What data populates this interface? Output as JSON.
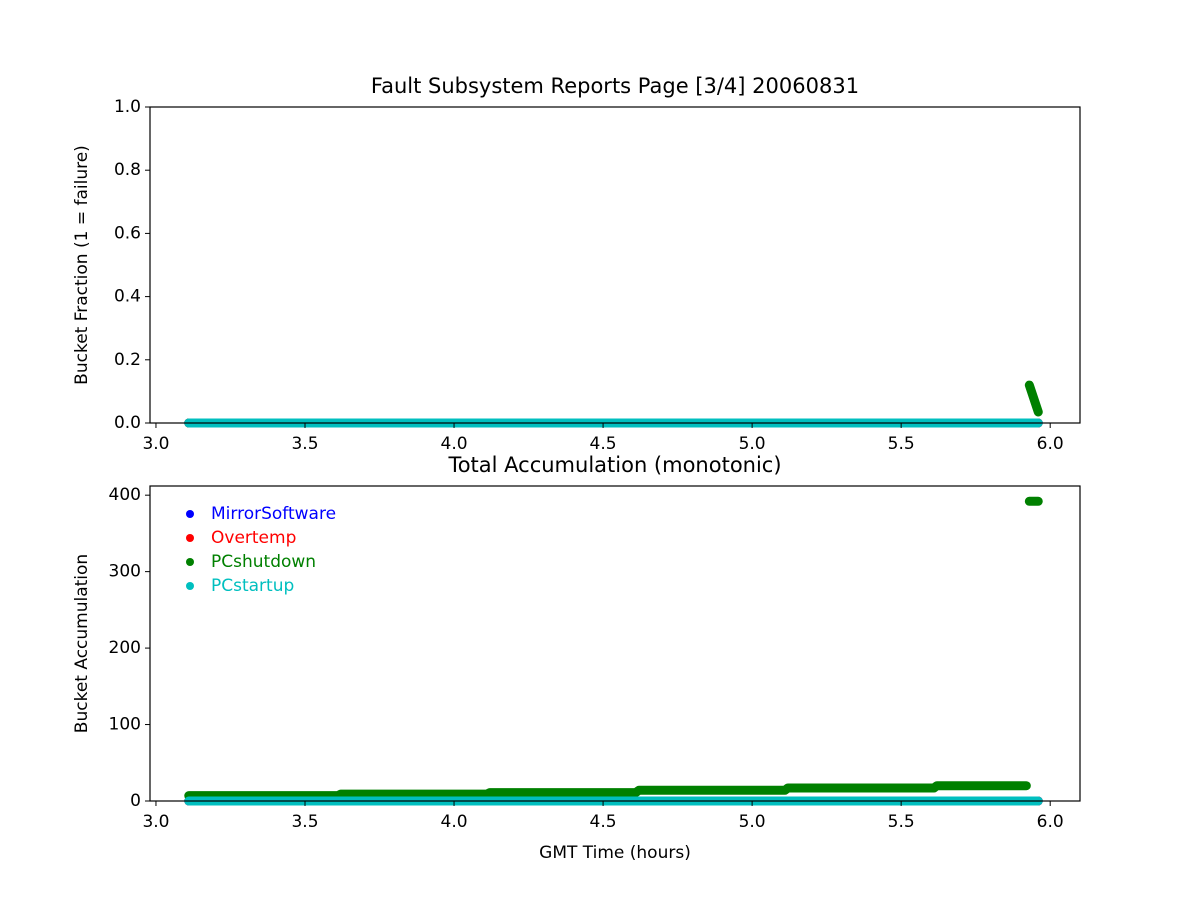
{
  "chart_data": [
    {
      "type": "line",
      "title": "Fault Subsystem Reports Page [3/4] 20060831",
      "ylabel": "Bucket Fraction (1 = failure)",
      "xlim": [
        2.98,
        6.1
      ],
      "ylim": [
        0,
        1
      ],
      "xticks": [
        {
          "value": 3,
          "label": "3.0"
        },
        3.5,
        {
          "value": 4,
          "label": "4.0"
        },
        4.5,
        {
          "value": 5,
          "label": "5.0"
        },
        5.5,
        {
          "value": 6,
          "label": "6.0"
        }
      ],
      "yticks": [
        {
          "value": 0,
          "label": "0.0"
        },
        0.2,
        0.4,
        0.6,
        0.8,
        {
          "value": 1,
          "label": "1.0"
        }
      ],
      "series": [
        {
          "name": "MirrorSoftware",
          "color": "#0000ff",
          "x": [
            3.11,
            5.96
          ],
          "values": [
            0,
            0
          ]
        },
        {
          "name": "Overtemp",
          "color": "#ff0000",
          "x": [
            3.11,
            5.96
          ],
          "values": [
            0,
            0
          ]
        },
        {
          "name": "PCshutdown",
          "color": "#008000",
          "x": [
            3.11,
            5.92,
            5.925,
            5.93,
            5.96
          ],
          "values": [
            0,
            0,
            null,
            0.12,
            0.035
          ]
        },
        {
          "name": "PCstartup",
          "color": "#00bfbf",
          "x": [
            3.11,
            5.96
          ],
          "values": [
            0,
            0
          ]
        }
      ]
    },
    {
      "type": "line",
      "title": "Total Accumulation (monotonic)",
      "xlabel": "GMT Time (hours)",
      "ylabel": "Bucket Accumulation",
      "xlim": [
        2.98,
        6.1
      ],
      "ylim": [
        0,
        412
      ],
      "xticks": [
        {
          "value": 3,
          "label": "3.0"
        },
        3.5,
        {
          "value": 4,
          "label": "4.0"
        },
        4.5,
        {
          "value": 5,
          "label": "5.0"
        },
        5.5,
        {
          "value": 6,
          "label": "6.0"
        }
      ],
      "yticks": [
        0,
        100,
        200,
        300,
        400
      ],
      "legend": "upper left",
      "series": [
        {
          "name": "MirrorSoftware",
          "color": "#0000ff",
          "x": [
            3.11,
            5.96
          ],
          "values": [
            0,
            0
          ]
        },
        {
          "name": "Overtemp",
          "color": "#ff0000",
          "x": [
            3.11,
            5.96
          ],
          "values": [
            0,
            0
          ]
        },
        {
          "name": "PCshutdown",
          "color": "#008000",
          "x": [
            3.11,
            3.61,
            3.62,
            4.11,
            4.12,
            4.61,
            4.62,
            5.11,
            5.12,
            5.61,
            5.62,
            5.92,
            5.925,
            5.93,
            5.96
          ],
          "values": [
            7,
            7,
            9,
            9,
            11,
            11,
            14,
            14,
            17,
            17,
            20,
            20,
            null,
            392,
            392
          ]
        },
        {
          "name": "PCstartup",
          "color": "#00bfbf",
          "x": [
            3.11,
            5.96
          ],
          "values": [
            0,
            0
          ]
        }
      ]
    }
  ]
}
